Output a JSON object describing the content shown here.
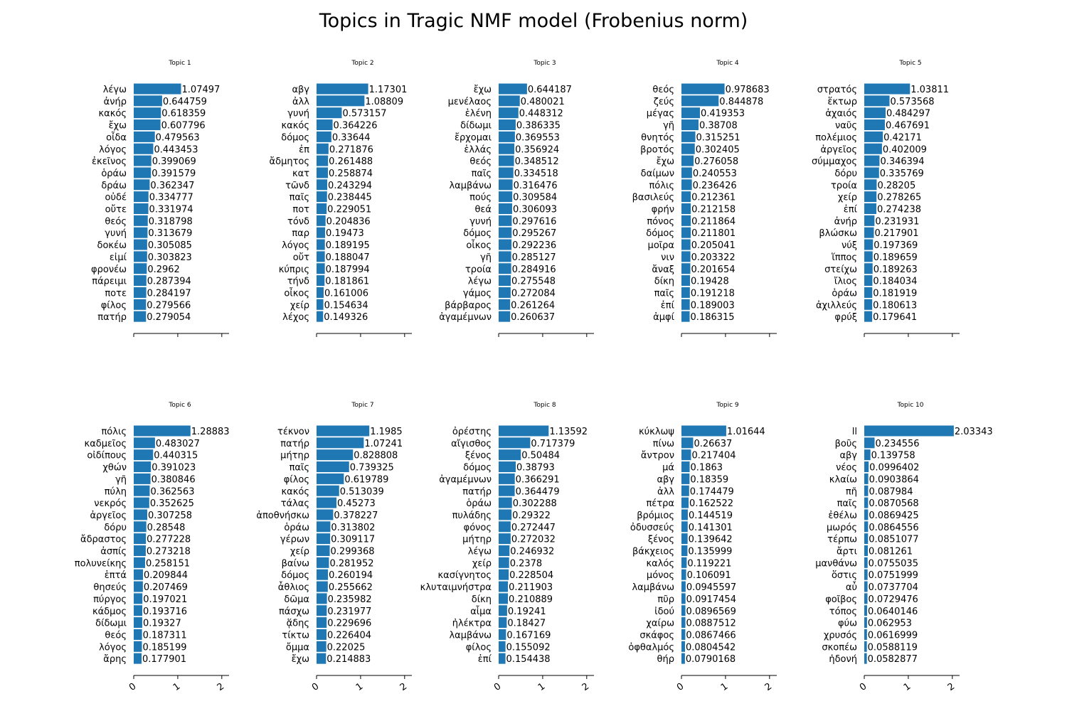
{
  "chart_data": {
    "type": "bar",
    "orientation": "horizontal",
    "title": "Topics in Tragic NMF model (Frobenius norm)",
    "xlim": [
      0,
      2.1
    ],
    "xticks": [
      "0",
      "1",
      "2"
    ],
    "bar_color": "#1f77b4",
    "panels": [
      {
        "title": "Topic 1",
        "categories": [
          "λέγω",
          "ἀνήρ",
          "κακός",
          "ἔχω",
          "οἶδα",
          "λόγος",
          "ἐκεῖνος",
          "ὁράω",
          "δράω",
          "οὐδέ",
          "οὔτε",
          "θεός",
          "γυνή",
          "δοκέω",
          "εἰμί",
          "φρονέω",
          "πάρειμι",
          "ποτε",
          "φίλος",
          "πατήρ"
        ],
        "values": [
          1.07497,
          0.644759,
          0.618359,
          0.607796,
          0.479563,
          0.443453,
          0.399069,
          0.391579,
          0.362347,
          0.334777,
          0.331974,
          0.318798,
          0.313679,
          0.305085,
          0.303823,
          0.2962,
          0.287394,
          0.284197,
          0.279566,
          0.279054
        ],
        "value_labels": [
          "1.07497",
          "0.644759",
          "0.618359",
          "0.607796",
          "0.479563",
          "0.443453",
          "0.399069",
          "0.391579",
          "0.362347",
          "0.334777",
          "0.331974",
          "0.318798",
          "0.313679",
          "0.305085",
          "0.303823",
          "0.2962",
          "0.287394",
          "0.284197",
          "0.279566",
          "0.279054"
        ]
      },
      {
        "title": "Topic 2",
        "categories": [
          "αβγ",
          "ἀλλ",
          "γυνή",
          "κακός",
          "δόμος",
          "ἐπ",
          "ἄδμητος",
          "κατ",
          "τῶνδ",
          "παῖς",
          "ποτ",
          "τόνδ",
          "παρ",
          "λόγος",
          "οὔτ",
          "κύπρις",
          "τήνδ",
          "οἶκος",
          "χείρ",
          "λέχος"
        ],
        "values": [
          1.17301,
          1.08809,
          0.573157,
          0.364226,
          0.33644,
          0.271876,
          0.261488,
          0.258874,
          0.243294,
          0.238445,
          0.229051,
          0.204836,
          0.19473,
          0.189195,
          0.188047,
          0.187994,
          0.181861,
          0.161006,
          0.154634,
          0.149326
        ],
        "value_labels": [
          "1.17301",
          "1.08809",
          "0.573157",
          "0.364226",
          "0.33644",
          "0.271876",
          "0.261488",
          "0.258874",
          "0.243294",
          "0.238445",
          "0.229051",
          "0.204836",
          "0.19473",
          "0.189195",
          "0.188047",
          "0.187994",
          "0.181861",
          "0.161006",
          "0.154634",
          "0.149326"
        ]
      },
      {
        "title": "Topic 3",
        "categories": [
          "ἔχω",
          "μενέλαος",
          "ἑλένη",
          "δίδωμι",
          "ἔρχομαι",
          "ἑλλάς",
          "θεός",
          "παῖς",
          "λαμβάνω",
          "πούς",
          "θεά",
          "γυνή",
          "δόμος",
          "οἶκος",
          "γῆ",
          "τροία",
          "λέγω",
          "γάμος",
          "βάρβαρος",
          "ἀγαμέμνων"
        ],
        "values": [
          0.644187,
          0.480021,
          0.448312,
          0.386335,
          0.369553,
          0.356924,
          0.348512,
          0.334518,
          0.316476,
          0.309584,
          0.306093,
          0.297616,
          0.295267,
          0.292236,
          0.285127,
          0.284916,
          0.275548,
          0.272084,
          0.261264,
          0.260637
        ],
        "value_labels": [
          "0.644187",
          "0.480021",
          "0.448312",
          "0.386335",
          "0.369553",
          "0.356924",
          "0.348512",
          "0.334518",
          "0.316476",
          "0.309584",
          "0.306093",
          "0.297616",
          "0.295267",
          "0.292236",
          "0.285127",
          "0.284916",
          "0.275548",
          "0.272084",
          "0.261264",
          "0.260637"
        ]
      },
      {
        "title": "Topic 4",
        "categories": [
          "θεός",
          "ζεύς",
          "μέγας",
          "γῆ",
          "θνητός",
          "βροτός",
          "ἔχω",
          "δαίμων",
          "πόλις",
          "βασιλεύς",
          "φρήν",
          "πόνος",
          "δόμος",
          "μοῖρα",
          "νιν",
          "ἄναξ",
          "δίκη",
          "παῖς",
          "ἐπί",
          "ἀμφί"
        ],
        "values": [
          0.978683,
          0.844878,
          0.419353,
          0.38708,
          0.315251,
          0.302405,
          0.276058,
          0.240553,
          0.236426,
          0.212361,
          0.212158,
          0.211864,
          0.211801,
          0.205041,
          0.203322,
          0.201654,
          0.19428,
          0.191218,
          0.189003,
          0.186315
        ],
        "value_labels": [
          "0.978683",
          "0.844878",
          "0.419353",
          "0.38708",
          "0.315251",
          "0.302405",
          "0.276058",
          "0.240553",
          "0.236426",
          "0.212361",
          "0.212158",
          "0.211864",
          "0.211801",
          "0.205041",
          "0.203322",
          "0.201654",
          "0.19428",
          "0.191218",
          "0.189003",
          "0.186315"
        ]
      },
      {
        "title": "Topic 5",
        "categories": [
          "στρατός",
          "ἕκτωρ",
          "ἀχαιός",
          "ναῦς",
          "πολέμιος",
          "ἀργεῖος",
          "σύμμαχος",
          "δόρυ",
          "τροία",
          "χείρ",
          "ἐπί",
          "ἀνήρ",
          "βλώσκω",
          "νύξ",
          "ἵππος",
          "στείχω",
          "ἴλιος",
          "ὁράω",
          "ἀχιλλεύς",
          "φρύξ"
        ],
        "values": [
          1.03811,
          0.573568,
          0.484297,
          0.467691,
          0.42171,
          0.402009,
          0.346394,
          0.335769,
          0.28205,
          0.278265,
          0.274238,
          0.231931,
          0.217901,
          0.197369,
          0.189659,
          0.189263,
          0.184034,
          0.181919,
          0.180613,
          0.179641
        ],
        "value_labels": [
          "1.03811",
          "0.573568",
          "0.484297",
          "0.467691",
          "0.42171",
          "0.402009",
          "0.346394",
          "0.335769",
          "0.28205",
          "0.278265",
          "0.274238",
          "0.231931",
          "0.217901",
          "0.197369",
          "0.189659",
          "0.189263",
          "0.184034",
          "0.181919",
          "0.180613",
          "0.179641"
        ]
      },
      {
        "title": "Topic 6",
        "categories": [
          "πόλις",
          "καδμεῖος",
          "οἰδίπους",
          "χθών",
          "γῆ",
          "πύλη",
          "νεκρός",
          "ἀργεῖος",
          "δόρυ",
          "ἄδραστος",
          "ἀσπίς",
          "πολυνείκης",
          "ἑπτά",
          "θησεύς",
          "πύργος",
          "κάδμος",
          "δίδωμι",
          "θεός",
          "λόγος",
          "ἄρης"
        ],
        "values": [
          1.28883,
          0.483027,
          0.440315,
          0.391023,
          0.380846,
          0.362563,
          0.352625,
          0.307258,
          0.28548,
          0.277228,
          0.273218,
          0.258151,
          0.209844,
          0.207469,
          0.197021,
          0.193716,
          0.19327,
          0.187311,
          0.185199,
          0.177901
        ],
        "value_labels": [
          "1.28883",
          "0.483027",
          "0.440315",
          "0.391023",
          "0.380846",
          "0.362563",
          "0.352625",
          "0.307258",
          "0.28548",
          "0.277228",
          "0.273218",
          "0.258151",
          "0.209844",
          "0.207469",
          "0.197021",
          "0.193716",
          "0.19327",
          "0.187311",
          "0.185199",
          "0.177901"
        ]
      },
      {
        "title": "Topic 7",
        "categories": [
          "τέκνον",
          "πατήρ",
          "μήτηρ",
          "παῖς",
          "φίλος",
          "κακός",
          "τάλας",
          "ἀποθνήσκω",
          "ὁράω",
          "γέρων",
          "χείρ",
          "βαίνω",
          "δόμος",
          "ἆθλιος",
          "δῶμα",
          "πάσχω",
          "ᾅδης",
          "τίκτω",
          "ὄμμα",
          "ἔχω"
        ],
        "values": [
          1.1985,
          1.07241,
          0.828808,
          0.739325,
          0.619789,
          0.513039,
          0.45273,
          0.378227,
          0.313802,
          0.309117,
          0.299368,
          0.281952,
          0.260194,
          0.255662,
          0.235982,
          0.231977,
          0.229696,
          0.226404,
          0.22025,
          0.214883
        ],
        "value_labels": [
          "1.1985",
          "1.07241",
          "0.828808",
          "0.739325",
          "0.619789",
          "0.513039",
          "0.45273",
          "0.378227",
          "0.313802",
          "0.309117",
          "0.299368",
          "0.281952",
          "0.260194",
          "0.255662",
          "0.235982",
          "0.231977",
          "0.229696",
          "0.226404",
          "0.22025",
          "0.214883"
        ]
      },
      {
        "title": "Topic 8",
        "categories": [
          "ὀρέστης",
          "αἴγισθος",
          "ξένος",
          "δόμος",
          "ἀγαμέμνων",
          "πατήρ",
          "ὁράω",
          "πυλάδης",
          "φόνος",
          "μήτηρ",
          "λέγω",
          "χείρ",
          "κασίγνητος",
          "κλυταιμνήστρα",
          "δίκη",
          "αἷμα",
          "ἠλέκτρα",
          "λαμβάνω",
          "φίλος",
          "ἐπί"
        ],
        "values": [
          1.13592,
          0.717379,
          0.50484,
          0.38793,
          0.366291,
          0.364479,
          0.302288,
          0.29322,
          0.272447,
          0.272032,
          0.246932,
          0.2378,
          0.228504,
          0.211903,
          0.210889,
          0.19241,
          0.18427,
          0.167169,
          0.155092,
          0.154438
        ],
        "value_labels": [
          "1.13592",
          "0.717379",
          "0.50484",
          "0.38793",
          "0.366291",
          "0.364479",
          "0.302288",
          "0.29322",
          "0.272447",
          "0.272032",
          "0.246932",
          "0.2378",
          "0.228504",
          "0.211903",
          "0.210889",
          "0.19241",
          "0.18427",
          "0.167169",
          "0.155092",
          "0.154438"
        ]
      },
      {
        "title": "Topic 9",
        "categories": [
          "κύκλωψ",
          "πίνω",
          "ἄντρον",
          "μά",
          "αβγ",
          "ἀλλ",
          "πέτρα",
          "βρόμιος",
          "ὀδυσσεύς",
          "ξένος",
          "βάκχειος",
          "καλός",
          "μόνος",
          "λαμβάνω",
          "πῦρ",
          "ἰδού",
          "χαίρω",
          "σκάφος",
          "ὀφθαλμός",
          "θήρ"
        ],
        "values": [
          1.01644,
          0.26637,
          0.217404,
          0.1863,
          0.18359,
          0.174479,
          0.162522,
          0.144519,
          0.141301,
          0.139642,
          0.135999,
          0.119221,
          0.106091,
          0.0945597,
          0.0917454,
          0.0896569,
          0.0887512,
          0.0867466,
          0.0804542,
          0.0790168
        ],
        "value_labels": [
          "1.01644",
          "0.26637",
          "0.217404",
          "0.1863",
          "0.18359",
          "0.174479",
          "0.162522",
          "0.144519",
          "0.141301",
          "0.139642",
          "0.135999",
          "0.119221",
          "0.106091",
          "0.0945597",
          "0.0917454",
          "0.0896569",
          "0.0887512",
          "0.0867466",
          "0.0804542",
          "0.0790168"
        ]
      },
      {
        "title": "Topic 10",
        "categories": [
          "ll",
          "βοῦς",
          "αβγ",
          "νέος",
          "κλαίω",
          "πῆ",
          "παῖς",
          "ἐθέλω",
          "μωρός",
          "τέρπω",
          "ἄρτι",
          "μανθάνω",
          "ὅστις",
          "αὖ",
          "φοῖβος",
          "τόπος",
          "φύω",
          "χρυσός",
          "σκοπέω",
          "ἡδονή"
        ],
        "values": [
          2.03343,
          0.234556,
          0.139758,
          0.0996402,
          0.0903864,
          0.087984,
          0.0870568,
          0.0869425,
          0.0864556,
          0.0851077,
          0.081261,
          0.0755035,
          0.0751999,
          0.0737704,
          0.0729476,
          0.0640146,
          0.062953,
          0.0616999,
          0.0588119,
          0.0582877
        ],
        "value_labels": [
          "2.03343",
          "0.234556",
          "0.139758",
          "0.0996402",
          "0.0903864",
          "0.087984",
          "0.0870568",
          "0.0869425",
          "0.0864556",
          "0.0851077",
          "0.081261",
          "0.0755035",
          "0.0751999",
          "0.0737704",
          "0.0729476",
          "0.0640146",
          "0.062953",
          "0.0616999",
          "0.0588119",
          "0.0582877"
        ]
      }
    ]
  }
}
